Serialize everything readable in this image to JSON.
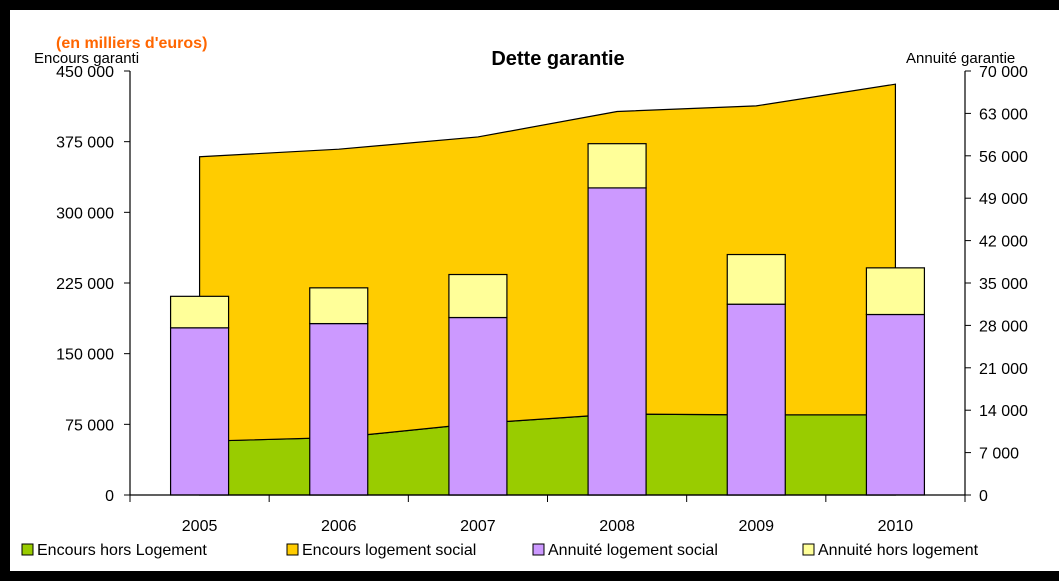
{
  "chart_data": {
    "type": "bar",
    "title": "Dette garantie",
    "unit_note": "(en milliers d'euros)",
    "categories": [
      "2005",
      "2006",
      "2007",
      "2008",
      "2009",
      "2010"
    ],
    "left_axis": {
      "label": "Encours garanti",
      "ylim": [
        0,
        450000
      ],
      "ticks": [
        "0",
        "75 000",
        "150 000",
        "225 000",
        "300 000",
        "375 000",
        "450 000"
      ]
    },
    "right_axis": {
      "label": "Annuité garantie",
      "ylim": [
        0,
        70000
      ],
      "ticks": [
        "0",
        "7 000",
        "14 000",
        "21 000",
        "28 000",
        "35 000",
        "42 000",
        "49 000",
        "56 000",
        "63 000",
        "70 000"
      ]
    },
    "area_series": [
      {
        "name": "Encours hors Logement",
        "axis": "left",
        "color": "#99cc00",
        "values": [
          57000,
          61000,
          76000,
          86000,
          85000,
          85000
        ]
      },
      {
        "name": "Encours logement social",
        "axis": "left",
        "color": "#ffcc00",
        "values": [
          302000,
          306000,
          304000,
          321000,
          328000,
          351000
        ]
      }
    ],
    "bar_series": [
      {
        "name": "Annuité logement social",
        "axis": "right",
        "color": "#cc99ff",
        "values": [
          27600,
          28300,
          29300,
          50700,
          31500,
          29800
        ]
      },
      {
        "name": "Annuité hors logement",
        "axis": "right",
        "color": "#ffff99",
        "values": [
          5200,
          5900,
          7100,
          7300,
          8200,
          7700
        ]
      }
    ],
    "grid": false,
    "legend_position": "bottom"
  }
}
